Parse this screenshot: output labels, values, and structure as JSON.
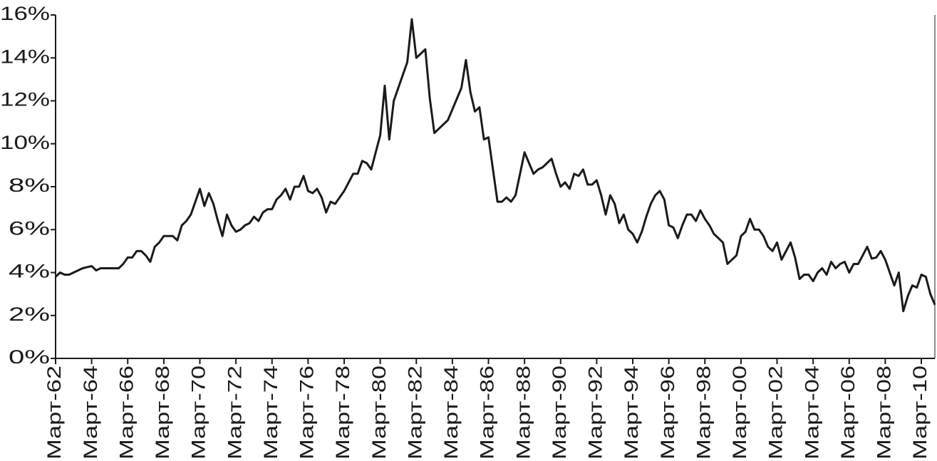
{
  "chart_data": {
    "type": "line",
    "categories": [
      "Март-62",
      null,
      null,
      null,
      null,
      null,
      null,
      null,
      "Март-64",
      null,
      null,
      null,
      null,
      null,
      null,
      null,
      "Март-66",
      null,
      null,
      null,
      null,
      null,
      null,
      null,
      "Март-68",
      null,
      null,
      null,
      null,
      null,
      null,
      null,
      "Март-70",
      null,
      null,
      null,
      null,
      null,
      null,
      null,
      "Март-72",
      null,
      null,
      null,
      null,
      null,
      null,
      null,
      "Март-74",
      null,
      null,
      null,
      null,
      null,
      null,
      null,
      "Март-76",
      null,
      null,
      null,
      null,
      null,
      null,
      null,
      "Март-78",
      null,
      null,
      null,
      null,
      null,
      null,
      null,
      "Март-80",
      null,
      null,
      null,
      null,
      null,
      null,
      null,
      "Март-82",
      null,
      null,
      null,
      null,
      null,
      null,
      null,
      "Март-84",
      null,
      null,
      null,
      null,
      null,
      null,
      null,
      "Март-86",
      null,
      null,
      null,
      null,
      null,
      null,
      null,
      "Март-88",
      null,
      null,
      null,
      null,
      null,
      null,
      null,
      "Март-90",
      null,
      null,
      null,
      null,
      null,
      null,
      null,
      "Март-92",
      null,
      null,
      null,
      null,
      null,
      null,
      null,
      "Март-94",
      null,
      null,
      null,
      null,
      null,
      null,
      null,
      "Март-96",
      null,
      null,
      null,
      null,
      null,
      null,
      null,
      "Март-98",
      null,
      null,
      null,
      null,
      null,
      null,
      null,
      "Март-00",
      null,
      null,
      null,
      null,
      null,
      null,
      null,
      "Март-02",
      null,
      null,
      null,
      null,
      null,
      null,
      null,
      "Март-04",
      null,
      null,
      null,
      null,
      null,
      null,
      null,
      "Март-06",
      null,
      null,
      null,
      null,
      null,
      null,
      null,
      "Март-08",
      null,
      null,
      null,
      null,
      null,
      null,
      null,
      "Март-10",
      null,
      null,
      null
    ],
    "series": [
      {
        "color": "#1a1a1a",
        "values": [
          3.8,
          4.0,
          3.9,
          3.9,
          4.0,
          4.1,
          4.2,
          4.25,
          4.3,
          4.1,
          4.2,
          4.2,
          4.2,
          4.2,
          4.2,
          4.4,
          4.7,
          4.7,
          5.0,
          5.0,
          4.8,
          4.5,
          5.2,
          5.4,
          5.7,
          5.7,
          5.7,
          5.5,
          6.2,
          6.4,
          6.7,
          7.3,
          7.9,
          7.1,
          7.7,
          7.2,
          6.4,
          5.7,
          6.7,
          6.2,
          5.9,
          6.0,
          6.2,
          6.3,
          6.6,
          6.4,
          6.8,
          6.95,
          6.95,
          7.4,
          7.6,
          7.9,
          7.4,
          8.0,
          8.0,
          8.5,
          7.8,
          7.7,
          7.9,
          7.5,
          6.8,
          7.3,
          7.2,
          7.5,
          7.8,
          8.2,
          8.6,
          8.6,
          9.2,
          9.1,
          8.8,
          9.6,
          10.4,
          12.7,
          10.2,
          12.0,
          12.6,
          13.2,
          13.8,
          15.8,
          14.0,
          14.2,
          14.4,
          12.1,
          10.5,
          10.7,
          10.9,
          11.1,
          11.6,
          12.1,
          12.6,
          13.9,
          12.4,
          11.5,
          11.7,
          10.2,
          10.3,
          8.8,
          7.3,
          7.3,
          7.5,
          7.3,
          7.6,
          8.6,
          9.6,
          9.1,
          8.6,
          8.8,
          8.9,
          9.1,
          9.3,
          8.6,
          8.0,
          8.2,
          7.9,
          8.6,
          8.5,
          8.8,
          8.1,
          8.1,
          8.3,
          7.6,
          6.7,
          7.6,
          7.2,
          6.3,
          6.7,
          6.0,
          5.8,
          5.4,
          5.9,
          6.6,
          7.2,
          7.6,
          7.8,
          7.4,
          6.2,
          6.1,
          5.6,
          6.2,
          6.7,
          6.7,
          6.4,
          6.9,
          6.5,
          6.2,
          5.8,
          5.6,
          5.4,
          4.4,
          4.6,
          4.8,
          5.7,
          5.9,
          6.5,
          6.0,
          6.0,
          5.7,
          5.2,
          5.0,
          5.4,
          4.6,
          5.0,
          5.4,
          4.7,
          3.7,
          3.9,
          3.9,
          3.6,
          4.0,
          4.2,
          3.9,
          4.5,
          4.2,
          4.4,
          4.5,
          4.0,
          4.4,
          4.4,
          4.8,
          5.2,
          4.65,
          4.7,
          5.0,
          4.6,
          4.0,
          3.4,
          4.0,
          2.2,
          2.9,
          3.4,
          3.3,
          3.9,
          3.8,
          3.0,
          2.5
        ]
      }
    ],
    "ylim": [
      0,
      16
    ],
    "yticks": [
      {
        "value": 0,
        "label": "0%"
      },
      {
        "value": 2,
        "label": "2%"
      },
      {
        "value": 4,
        "label": "4%"
      },
      {
        "value": 6,
        "label": "6%"
      },
      {
        "value": 8,
        "label": "8%"
      },
      {
        "value": 10,
        "label": "10%"
      },
      {
        "value": 12,
        "label": "12%"
      },
      {
        "value": 14,
        "label": "14%"
      },
      {
        "value": 16,
        "label": "16%"
      }
    ]
  }
}
